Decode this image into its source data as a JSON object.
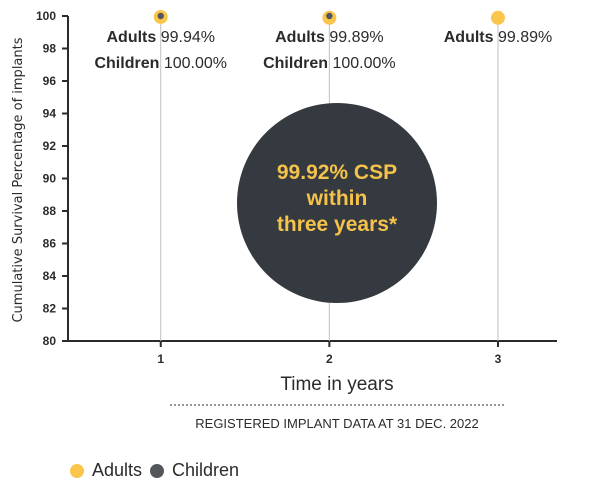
{
  "chart_data": {
    "type": "scatter",
    "ylabel": "Cumulative Survival Percentage of implants",
    "xlabel": "Time in years",
    "note": "REGISTERED IMPLANT DATA AT 31 DEC. 2022",
    "x": [
      1,
      2,
      3
    ],
    "ylim": [
      80,
      100
    ],
    "yticks": [
      80,
      82,
      84,
      86,
      88,
      90,
      92,
      94,
      96,
      98,
      100
    ],
    "xticks": [
      "1",
      "2",
      "3"
    ],
    "grid": false,
    "legend_position": "bottom-left",
    "series": [
      {
        "name": "Adults",
        "values": [
          99.94,
          99.89,
          99.89
        ],
        "color": "#f9c64b"
      },
      {
        "name": "Children",
        "values": [
          100.0,
          100.0,
          null
        ],
        "color": "#53575c"
      }
    ],
    "annotations": [
      {
        "x": 1,
        "lines": [
          {
            "label": "Adults",
            "value": "99.94%"
          },
          {
            "label": "Children",
            "value": "100.00%"
          }
        ]
      },
      {
        "x": 2,
        "lines": [
          {
            "label": "Adults",
            "value": "99.89%"
          },
          {
            "label": "Children",
            "value": "100.00%"
          }
        ]
      },
      {
        "x": 3,
        "lines": [
          {
            "label": "Adults",
            "value": "99.89%"
          }
        ]
      }
    ],
    "callout": {
      "lines": [
        "99.92% CSP",
        "within",
        "three years*"
      ],
      "fill": "#343a40",
      "text_color": "#f5c24a"
    }
  },
  "legend": [
    {
      "label": "Adults",
      "color": "#f9c64b"
    },
    {
      "label": "Children",
      "color": "#53575c"
    }
  ]
}
